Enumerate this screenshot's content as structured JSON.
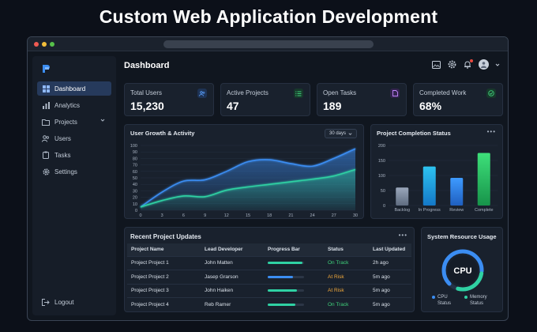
{
  "headline": "Custom Web Application Development",
  "sidebar": {
    "items": [
      {
        "label": "Dashboard",
        "icon": "grid-icon",
        "active": true
      },
      {
        "label": "Analytics",
        "icon": "bar-chart-icon"
      },
      {
        "label": "Projects",
        "icon": "folder-icon"
      },
      {
        "label": "Users",
        "icon": "users-icon"
      },
      {
        "label": "Tasks",
        "icon": "clipboard-icon"
      },
      {
        "label": "Settings",
        "icon": "gear-icon"
      }
    ],
    "logout": "Logout"
  },
  "header": {
    "title": "Dashboard",
    "icons": [
      "image-icon",
      "gear-icon",
      "bell-icon",
      "user-avatar"
    ]
  },
  "stats": [
    {
      "label": "Total Users",
      "value": "15,230",
      "icon": "users-icon",
      "color": "#3b82f6"
    },
    {
      "label": "Active Projects",
      "value": "47",
      "icon": "list-icon",
      "color": "#22c55e"
    },
    {
      "label": "Open Tasks",
      "value": "189",
      "icon": "document-icon",
      "color": "#a855f7"
    },
    {
      "label": "Completed Work",
      "value": "68%",
      "icon": "check-circle-icon",
      "color": "#22c55e"
    }
  ],
  "growth_chart": {
    "title": "User Growth & Activity",
    "range_select": "30 days"
  },
  "completion_chart": {
    "title": "Project Completion Status"
  },
  "chart_data": [
    {
      "type": "area",
      "title": "User Growth & Activity",
      "x": [
        0,
        3,
        6,
        9,
        12,
        15,
        18,
        21,
        24,
        27,
        30
      ],
      "ylim": [
        0,
        100
      ],
      "yticks": [
        0,
        10,
        20,
        30,
        40,
        50,
        60,
        70,
        80,
        90,
        100
      ],
      "grid": true,
      "series": [
        {
          "color": "#3b8df2",
          "values": [
            5,
            28,
            45,
            47,
            60,
            75,
            78,
            72,
            68,
            80,
            95
          ]
        },
        {
          "color": "#2fd1a3",
          "values": [
            5,
            15,
            22,
            21,
            31,
            36,
            40,
            44,
            48,
            53,
            63
          ]
        }
      ]
    },
    {
      "type": "bar",
      "title": "Project Completion Status",
      "categories": [
        "Backlog",
        "In Progress",
        "Review",
        "Complete"
      ],
      "values": [
        60,
        130,
        92,
        175
      ],
      "colors": [
        "#7e8ca3",
        "#1fa4e8",
        "#2f8cf0",
        "#27c46a"
      ],
      "ylim": [
        0,
        200
      ],
      "yticks": [
        0,
        50,
        100,
        150,
        200
      ]
    }
  ],
  "updates": {
    "title": "Recent Project Updates",
    "columns": [
      "Project Name",
      "Lead Developer",
      "Progress Bar",
      "Status",
      "Last Updated"
    ],
    "rows": [
      {
        "name": "Project Project 1",
        "lead": "John Matten",
        "progress": 0.95,
        "bar_color": "#2fd1a3",
        "status": "On Track",
        "status_color": "#3fd17a",
        "updated": "2h ago"
      },
      {
        "name": "Project Project 2",
        "lead": "Jasep Grarson",
        "progress": 0.7,
        "bar_color": "#3b8df2",
        "status": "At Risk",
        "status_color": "#f2a93b",
        "updated": "5m ago"
      },
      {
        "name": "Project Project 3",
        "lead": "John Haiken",
        "progress": 0.8,
        "bar_color": "#2fd1a3",
        "status": "At Risk",
        "status_color": "#f2a93b",
        "updated": "5m ago"
      },
      {
        "name": "Project Project 4",
        "lead": "Reb Ramer",
        "progress": 0.75,
        "bar_color": "#2fd1a3",
        "status": "On Track",
        "status_color": "#3fd17a",
        "updated": "5m ago"
      }
    ]
  },
  "resources": {
    "title": "System Resource Usage",
    "gauge_label": "CPU",
    "legend": [
      {
        "label": "CPU Status",
        "color": "#3b8df2"
      },
      {
        "label": "Memory Status",
        "color": "#2fd1a3"
      }
    ]
  }
}
